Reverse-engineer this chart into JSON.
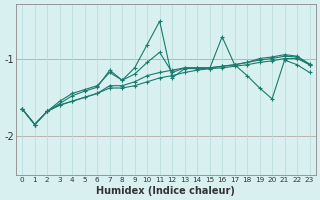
{
  "xlabel": "Humidex (Indice chaleur)",
  "x": [
    0,
    1,
    2,
    3,
    4,
    5,
    6,
    7,
    8,
    9,
    10,
    11,
    12,
    13,
    14,
    15,
    16,
    17,
    18,
    19,
    20,
    21,
    22,
    23
  ],
  "lines": [
    [
      -1.65,
      -1.85,
      -1.68,
      -1.6,
      -1.55,
      -1.5,
      -1.45,
      -1.38,
      -1.38,
      -1.35,
      -1.3,
      -1.25,
      -1.22,
      -1.18,
      -1.15,
      -1.13,
      -1.12,
      -1.1,
      -1.08,
      -1.05,
      -1.03,
      -1.0,
      -1.0,
      -1.08
    ],
    [
      -1.65,
      -1.85,
      -1.68,
      -1.6,
      -1.55,
      -1.5,
      -1.45,
      -1.35,
      -1.35,
      -1.3,
      -1.22,
      -1.18,
      -1.15,
      -1.12,
      -1.12,
      -1.12,
      -1.1,
      -1.08,
      -1.05,
      -1.02,
      -1.0,
      -0.97,
      -0.98,
      -1.08
    ],
    [
      -1.65,
      -1.85,
      -1.68,
      -1.58,
      -1.48,
      -1.42,
      -1.37,
      -1.15,
      -1.28,
      -1.2,
      -1.05,
      -0.92,
      -1.18,
      -1.12,
      -1.12,
      -1.12,
      -1.1,
      -1.08,
      -1.05,
      -1.0,
      -0.98,
      -0.95,
      -0.97,
      -1.07
    ],
    [
      -1.65,
      -1.85,
      -1.68,
      -1.55,
      -1.45,
      -1.4,
      -1.35,
      -1.18,
      -1.28,
      -1.12,
      -0.82,
      -0.52,
      -1.25,
      -1.13,
      -1.13,
      -1.13,
      -0.72,
      -1.08,
      -1.22,
      -1.38,
      -1.52,
      -1.02,
      -1.08,
      -1.18
    ]
  ],
  "line_color": "#1a7a6e",
  "bg_color": "#d8f0ef",
  "grid_color": "#b8dbd8",
  "ylim": [
    -2.5,
    -0.3
  ],
  "xlim": [
    -0.5,
    23.5
  ],
  "yticks": [
    -2,
    -1
  ],
  "marker": "+",
  "markersize": 3.5,
  "linewidth": 0.8
}
